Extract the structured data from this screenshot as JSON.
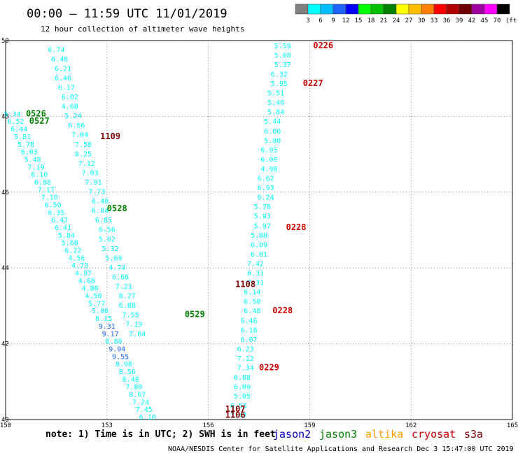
{
  "header": {
    "title": "00:00 – 11:59 UTC 11/01/2019",
    "subtitle": "12 hour collection of altimeter wave heights"
  },
  "colorbar": {
    "unit": "(ft)",
    "labels": [
      "3",
      "6",
      "9",
      "12",
      "15",
      "18",
      "21",
      "24",
      "27",
      "30",
      "33",
      "36",
      "39",
      "42",
      "45",
      "70"
    ],
    "colors": [
      "#7f7f7f",
      "#00ffff",
      "#00bfff",
      "#1e64ff",
      "#0000ff",
      "#00ff00",
      "#00c000",
      "#008000",
      "#ffff00",
      "#ffbf00",
      "#ff8000",
      "#ff0000",
      "#b00000",
      "#700000",
      "#a000a0",
      "#ff00ff",
      "#000000"
    ]
  },
  "footer": {
    "note": "note: 1) Time is in UTC; 2) SWH is in feet",
    "legend": [
      {
        "label": "jason2",
        "color": "#0000cc"
      },
      {
        "label": "jason3",
        "color": "#008000"
      },
      {
        "label": "altika",
        "color": "#ff9900"
      },
      {
        "label": "cryosat",
        "color": "#cc0000"
      },
      {
        "label": "s3a",
        "color": "#800000"
      }
    ],
    "credit": "NOAA/NESDIS Center for Satellite Applications and Research   Dec  3 15:47:00 UTC 2019"
  },
  "chart_data": {
    "type": "scatter",
    "grid": true,
    "xlim": [
      150,
      165
    ],
    "ylim": [
      40,
      50
    ],
    "x_ticks": [
      "150",
      "153",
      "156",
      "159",
      "162",
      "165"
    ],
    "y_ticks": [
      "40",
      "42",
      "44",
      "46",
      "48",
      "50"
    ],
    "tracks": [
      {
        "satellite": "cryosat",
        "times": [
          {
            "label": "0226",
            "lon": 159.1,
            "lat": 49.8
          },
          {
            "label": "0227",
            "lon": 158.8,
            "lat": 48.8
          },
          {
            "label": "0228",
            "lon": 158.3,
            "lat": 45.0
          },
          {
            "label": "0228",
            "lon": 157.9,
            "lat": 42.8
          },
          {
            "label": "0229",
            "lon": 157.5,
            "lat": 41.3
          }
        ],
        "points": [
          {
            "lon": 158.2,
            "lat": 49.8,
            "swh": "5.59"
          },
          {
            "lon": 158.2,
            "lat": 49.55,
            "swh": "5.08"
          },
          {
            "lon": 158.2,
            "lat": 49.3,
            "swh": "5.37"
          },
          {
            "lon": 158.1,
            "lat": 49.05,
            "swh": "6.32"
          },
          {
            "lon": 158.1,
            "lat": 48.8,
            "swh": "5.95"
          },
          {
            "lon": 158.0,
            "lat": 48.55,
            "swh": "5.51"
          },
          {
            "lon": 158.0,
            "lat": 48.3,
            "swh": "5.46"
          },
          {
            "lon": 158.0,
            "lat": 48.05,
            "swh": "5.84"
          },
          {
            "lon": 157.9,
            "lat": 47.8,
            "swh": "5.44"
          },
          {
            "lon": 157.9,
            "lat": 47.55,
            "swh": "6.00"
          },
          {
            "lon": 157.9,
            "lat": 47.3,
            "swh": "5.80"
          },
          {
            "lon": 157.8,
            "lat": 47.05,
            "swh": "6.95"
          },
          {
            "lon": 157.8,
            "lat": 46.8,
            "swh": "6.06"
          },
          {
            "lon": 157.8,
            "lat": 46.55,
            "swh": "4.98"
          },
          {
            "lon": 157.7,
            "lat": 46.3,
            "swh": "6.62"
          },
          {
            "lon": 157.7,
            "lat": 46.05,
            "swh": "6.93"
          },
          {
            "lon": 157.7,
            "lat": 45.8,
            "swh": "6.24"
          },
          {
            "lon": 157.6,
            "lat": 45.55,
            "swh": "5.78"
          },
          {
            "lon": 157.6,
            "lat": 45.3,
            "swh": "5.93"
          },
          {
            "lon": 157.6,
            "lat": 45.05,
            "swh": "5.97"
          },
          {
            "lon": 157.5,
            "lat": 44.8,
            "swh": "5.88"
          },
          {
            "lon": 157.5,
            "lat": 44.55,
            "swh": "6.09"
          },
          {
            "lon": 157.5,
            "lat": 44.3,
            "swh": "6.01"
          },
          {
            "lon": 157.4,
            "lat": 44.05,
            "swh": "7.42"
          },
          {
            "lon": 157.4,
            "lat": 43.8,
            "swh": "6.31"
          },
          {
            "lon": 157.4,
            "lat": 43.55,
            "swh": "7.31"
          },
          {
            "lon": 157.3,
            "lat": 43.3,
            "swh": "6.14"
          },
          {
            "lon": 157.3,
            "lat": 43.05,
            "swh": "6.50"
          },
          {
            "lon": 157.3,
            "lat": 42.8,
            "swh": "6.48"
          },
          {
            "lon": 157.2,
            "lat": 42.55,
            "swh": "6.46"
          },
          {
            "lon": 157.2,
            "lat": 42.3,
            "swh": "6.18"
          },
          {
            "lon": 157.2,
            "lat": 42.05,
            "swh": "6.07"
          },
          {
            "lon": 157.1,
            "lat": 41.8,
            "swh": "6.23"
          },
          {
            "lon": 157.1,
            "lat": 41.55,
            "swh": "7.12"
          },
          {
            "lon": 157.1,
            "lat": 41.3,
            "swh": "7.34"
          },
          {
            "lon": 157.0,
            "lat": 41.05,
            "swh": "6.88"
          },
          {
            "lon": 157.0,
            "lat": 40.8,
            "swh": "6.09"
          },
          {
            "lon": 157.0,
            "lat": 40.55,
            "swh": "5.85"
          },
          {
            "lon": 156.9,
            "lat": 40.3,
            "swh": "6.55"
          },
          {
            "lon": 156.9,
            "lat": 40.05,
            "swh": "7.47"
          }
        ]
      },
      {
        "satellite": "s3a",
        "times": [
          {
            "label": "1109",
            "lon": 152.8,
            "lat": 47.4
          },
          {
            "lon": 156.8,
            "lat": 43.5,
            "label": "1108"
          },
          {
            "label": "1107",
            "lon": 156.5,
            "lat": 40.2
          },
          {
            "label": "1106",
            "lon": 156.5,
            "lat": 40.05
          }
        ],
        "points": [
          {
            "lon": 151.5,
            "lat": 49.7,
            "swh": "6.74"
          },
          {
            "lon": 151.6,
            "lat": 49.45,
            "swh": "6.48"
          },
          {
            "lon": 151.7,
            "lat": 49.2,
            "swh": "6.21"
          },
          {
            "lon": 151.7,
            "lat": 48.95,
            "swh": "6.46"
          },
          {
            "lon": 151.8,
            "lat": 48.7,
            "swh": "6.17"
          },
          {
            "lon": 151.9,
            "lat": 48.45,
            "swh": "6.02"
          },
          {
            "lon": 151.9,
            "lat": 48.2,
            "swh": "4.68"
          },
          {
            "lon": 152.0,
            "lat": 47.95,
            "swh": "5.24"
          },
          {
            "lon": 152.1,
            "lat": 47.7,
            "swh": "6.66"
          },
          {
            "lon": 152.2,
            "lat": 47.45,
            "swh": "7.04"
          },
          {
            "lon": 152.3,
            "lat": 47.2,
            "swh": "7.58"
          },
          {
            "lon": 152.3,
            "lat": 46.95,
            "swh": "8.25"
          },
          {
            "lon": 152.4,
            "lat": 46.7,
            "swh": "7.12"
          },
          {
            "lon": 152.5,
            "lat": 46.45,
            "swh": "7.03"
          },
          {
            "lon": 152.6,
            "lat": 46.2,
            "swh": "7.91"
          },
          {
            "lon": 152.7,
            "lat": 45.95,
            "swh": "7.73"
          },
          {
            "lon": 152.8,
            "lat": 45.7,
            "swh": "6.40"
          },
          {
            "lon": 152.8,
            "lat": 45.45,
            "swh": "6.04"
          },
          {
            "lon": 152.9,
            "lat": 45.2,
            "swh": "6.85"
          },
          {
            "lon": 153.0,
            "lat": 44.95,
            "swh": "6.56"
          },
          {
            "lon": 153.0,
            "lat": 44.7,
            "swh": "5.62"
          },
          {
            "lon": 153.1,
            "lat": 44.45,
            "swh": "5.32"
          },
          {
            "lon": 153.2,
            "lat": 44.2,
            "swh": "5.69"
          },
          {
            "lon": 153.3,
            "lat": 43.95,
            "swh": "4.74"
          },
          {
            "lon": 153.4,
            "lat": 43.7,
            "swh": "6.66"
          },
          {
            "lon": 153.5,
            "lat": 43.45,
            "swh": "7.21"
          },
          {
            "lon": 153.6,
            "lat": 43.2,
            "swh": "8.27"
          },
          {
            "lon": 153.6,
            "lat": 42.95,
            "swh": "6.88"
          },
          {
            "lon": 153.7,
            "lat": 42.7,
            "swh": "7.55"
          },
          {
            "lon": 153.8,
            "lat": 42.45,
            "swh": "7.19"
          },
          {
            "lon": 153.9,
            "lat": 42.2,
            "swh": "7.64"
          }
        ]
      },
      {
        "satellite": "jason3",
        "times": [
          {
            "label": "0526",
            "lon": 150.6,
            "lat": 48.0
          },
          {
            "label": "0527",
            "lon": 150.7,
            "lat": 47.8
          },
          {
            "label": "0528",
            "lon": 153.0,
            "lat": 45.5
          },
          {
            "label": "0529",
            "lon": 155.3,
            "lat": 42.7
          }
        ],
        "points": [
          {
            "lon": 150.2,
            "lat": 48.0,
            "swh": "5.34"
          },
          {
            "lon": 150.3,
            "lat": 47.8,
            "swh": "6.52"
          },
          {
            "lon": 150.4,
            "lat": 47.6,
            "swh": "6.44"
          },
          {
            "lon": 150.5,
            "lat": 47.4,
            "swh": "5.81"
          },
          {
            "lon": 150.6,
            "lat": 47.2,
            "swh": "5.78"
          },
          {
            "lon": 150.7,
            "lat": 47.0,
            "swh": "6.03"
          },
          {
            "lon": 150.8,
            "lat": 46.8,
            "swh": "5.48"
          },
          {
            "lon": 150.9,
            "lat": 46.6,
            "swh": "7.19"
          },
          {
            "lon": 151.0,
            "lat": 46.4,
            "swh": "6.10"
          },
          {
            "lon": 151.1,
            "lat": 46.2,
            "swh": "6.88"
          },
          {
            "lon": 151.2,
            "lat": 46.0,
            "swh": "7.17"
          },
          {
            "lon": 151.3,
            "lat": 45.8,
            "swh": "7.10"
          },
          {
            "lon": 151.4,
            "lat": 45.6,
            "swh": "6.50"
          },
          {
            "lon": 151.5,
            "lat": 45.4,
            "swh": "6.35"
          },
          {
            "lon": 151.6,
            "lat": 45.2,
            "swh": "6.42"
          },
          {
            "lon": 151.7,
            "lat": 45.0,
            "swh": "6.41"
          },
          {
            "lon": 151.8,
            "lat": 44.8,
            "swh": "5.84"
          },
          {
            "lon": 151.9,
            "lat": 44.6,
            "swh": "5.68"
          },
          {
            "lon": 152.0,
            "lat": 44.4,
            "swh": "6.22"
          },
          {
            "lon": 152.1,
            "lat": 44.2,
            "swh": "4.56"
          },
          {
            "lon": 152.2,
            "lat": 44.0,
            "swh": "4.73"
          },
          {
            "lon": 152.3,
            "lat": 43.8,
            "swh": "4.97"
          },
          {
            "lon": 152.4,
            "lat": 43.6,
            "swh": "4.68"
          },
          {
            "lon": 152.5,
            "lat": 43.4,
            "swh": "4.86"
          },
          {
            "lon": 152.6,
            "lat": 43.2,
            "swh": "4.50"
          },
          {
            "lon": 152.7,
            "lat": 43.0,
            "swh": "5.77"
          },
          {
            "lon": 152.8,
            "lat": 42.8,
            "swh": "5.80"
          },
          {
            "lon": 152.9,
            "lat": 42.6,
            "swh": "8.15"
          },
          {
            "lon": 153.0,
            "lat": 42.4,
            "swh": "9.31"
          },
          {
            "lon": 153.1,
            "lat": 42.2,
            "swh": "9.17"
          },
          {
            "lon": 153.2,
            "lat": 42.0,
            "swh": "8.80"
          },
          {
            "lon": 153.3,
            "lat": 41.8,
            "swh": "9.94"
          },
          {
            "lon": 153.4,
            "lat": 41.6,
            "swh": "9.55"
          },
          {
            "lon": 153.5,
            "lat": 41.4,
            "swh": "8.98"
          },
          {
            "lon": 153.6,
            "lat": 41.2,
            "swh": "8.56"
          },
          {
            "lon": 153.7,
            "lat": 41.0,
            "swh": "8.48"
          },
          {
            "lon": 153.8,
            "lat": 40.8,
            "swh": "7.80"
          },
          {
            "lon": 153.9,
            "lat": 40.6,
            "swh": "8.67"
          },
          {
            "lon": 154.0,
            "lat": 40.4,
            "swh": "7.24"
          },
          {
            "lon": 154.1,
            "lat": 40.2,
            "swh": "7.45"
          },
          {
            "lon": 154.2,
            "lat": 40.0,
            "swh": "6.10"
          }
        ]
      }
    ]
  }
}
